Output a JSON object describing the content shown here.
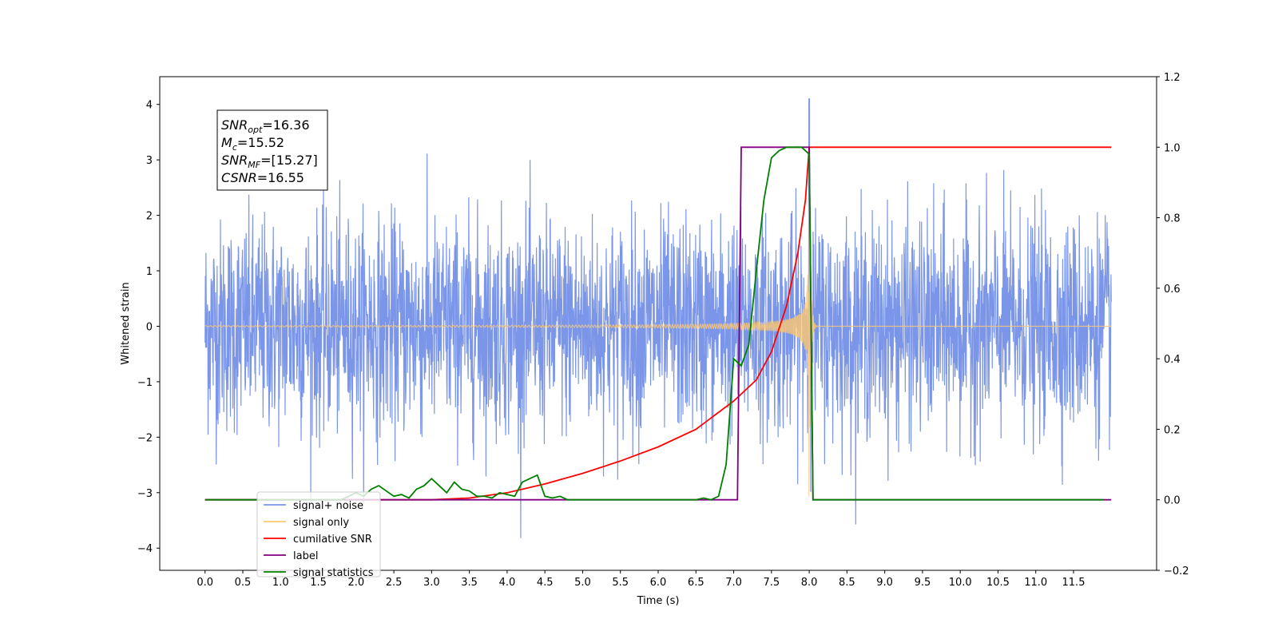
{
  "chart_data": {
    "type": "line",
    "xlabel": "Time (s)",
    "ylabel": "Whitened strain",
    "xlim": [
      -0.6,
      12.6
    ],
    "ylim": [
      -4.4,
      4.5
    ],
    "y2lim": [
      -0.2,
      1.2
    ],
    "x_ticks": [
      "0.0",
      "0.5",
      "1.0",
      "1.5",
      "2.0",
      "2.5",
      "3.0",
      "3.5",
      "4.0",
      "4.5",
      "5.0",
      "5.5",
      "6.0",
      "6.5",
      "7.0",
      "7.5",
      "8.0",
      "8.5",
      "9.0",
      "9.5",
      "10.0",
      "10.5",
      "11.0",
      "11.5"
    ],
    "y_ticks": [
      4,
      3,
      2,
      1,
      0,
      -1,
      -2,
      -3,
      -4
    ],
    "y2_ticks": [
      "1.2",
      "1.0",
      "0.8",
      "0.6",
      "0.4",
      "0.2",
      "0.0",
      "−0.2"
    ],
    "grid": false,
    "legend_position": "lower-left",
    "annotation": {
      "lines": [
        {
          "main": "SNR",
          "sub": "opt",
          "rest": "=16.36"
        },
        {
          "main": "M",
          "sub": "c",
          "rest": "=15.52"
        },
        {
          "main": "SNR",
          "sub": "MF",
          "rest": "=[15.27]"
        },
        {
          "main": "CSNR",
          "sub": "",
          "rest": "=16.55"
        }
      ]
    },
    "series": [
      {
        "name": "signal+ noise",
        "color": "#7b96e8",
        "axis": "left",
        "description_values": {
          "x_range": [
            0.0,
            12.0
          ],
          "amplitude_typical": 2.0,
          "peak": 4.1,
          "peak_time": 8.0
        }
      },
      {
        "name": "signal only",
        "color": "#ffc870",
        "axis": "left",
        "description_values": {
          "x_range": [
            0.0,
            12.0
          ],
          "peak": 3.5,
          "merger_time": 8.0
        }
      },
      {
        "name": "cumilative SNR",
        "color": "#ff0000",
        "axis": "right",
        "x": [
          0.0,
          3.0,
          3.5,
          4.0,
          4.5,
          5.0,
          5.5,
          6.0,
          6.5,
          7.0,
          7.3,
          7.5,
          7.7,
          7.85,
          7.95,
          8.0,
          8.05,
          12.0
        ],
        "y": [
          0.0,
          0.0,
          0.005,
          0.02,
          0.045,
          0.075,
          0.11,
          0.15,
          0.2,
          0.28,
          0.34,
          0.42,
          0.55,
          0.7,
          0.85,
          1.0,
          1.0,
          1.0
        ]
      },
      {
        "name": "label",
        "color": "#800080",
        "axis": "right",
        "x": [
          0.0,
          7.05,
          7.1,
          8.0,
          8.05,
          12.0
        ],
        "y": [
          0.0,
          0.0,
          1.0,
          1.0,
          0.0,
          0.0
        ]
      },
      {
        "name": "signal statistics",
        "color": "#008000",
        "axis": "right",
        "x": [
          0.0,
          1.8,
          1.9,
          2.0,
          2.1,
          2.2,
          2.3,
          2.4,
          2.5,
          2.6,
          2.7,
          2.8,
          2.9,
          3.0,
          3.1,
          3.2,
          3.3,
          3.4,
          3.5,
          3.6,
          3.7,
          3.8,
          3.9,
          4.0,
          4.1,
          4.2,
          4.3,
          4.4,
          4.5,
          4.6,
          4.7,
          4.8,
          6.5,
          6.6,
          6.7,
          6.8,
          6.9,
          7.0,
          7.1,
          7.2,
          7.3,
          7.4,
          7.5,
          7.6,
          7.7,
          7.8,
          7.9,
          8.0,
          8.05,
          11.9
        ],
        "y": [
          0.0,
          0.0,
          0.01,
          0.02,
          0.01,
          0.03,
          0.04,
          0.025,
          0.01,
          0.015,
          0.005,
          0.03,
          0.04,
          0.06,
          0.04,
          0.02,
          0.05,
          0.03,
          0.025,
          0.01,
          0.01,
          0.005,
          0.02,
          0.015,
          0.01,
          0.05,
          0.06,
          0.07,
          0.01,
          0.005,
          0.01,
          0.0,
          0.0,
          0.005,
          0.0,
          0.01,
          0.1,
          0.4,
          0.38,
          0.44,
          0.65,
          0.85,
          0.97,
          0.99,
          1.0,
          1.0,
          1.0,
          0.98,
          0.0,
          0.0
        ]
      }
    ]
  }
}
